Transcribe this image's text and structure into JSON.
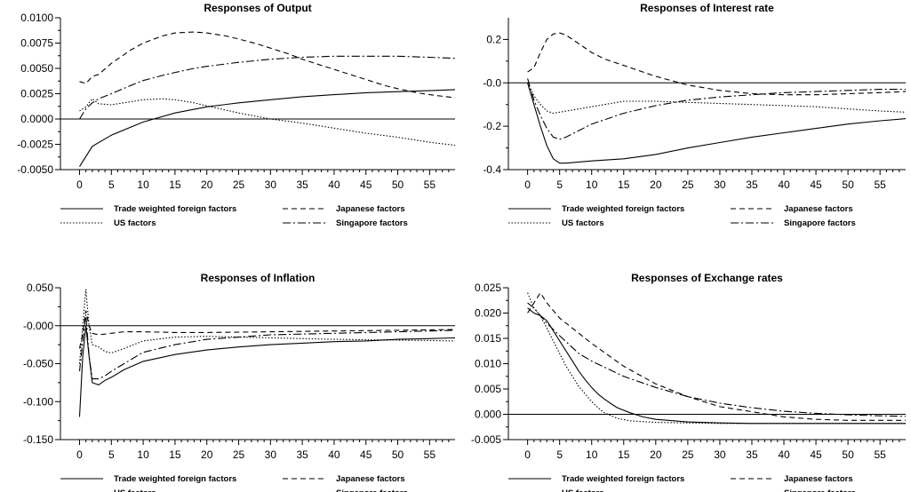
{
  "legend_entries": [
    {
      "name": "Trade weighted foreign factors",
      "dash": "none"
    },
    {
      "name": "Japanese factors",
      "dash": "6,4"
    },
    {
      "name": "US factors",
      "dash": "1.5,2"
    },
    {
      "name": "Singapore factors",
      "dash": "9,3,2,3"
    }
  ],
  "chart_data": [
    {
      "type": "line",
      "title": "Responses of Output",
      "xlim": [
        -3,
        59
      ],
      "ylim": [
        -0.005,
        0.01
      ],
      "xticks": [
        0,
        5,
        10,
        15,
        20,
        25,
        30,
        35,
        40,
        45,
        50,
        55
      ],
      "xtick_labels": [
        "0",
        "5",
        "10",
        "15",
        "20",
        "25",
        "30",
        "35",
        "40",
        "45",
        "50",
        "55"
      ],
      "yticks": [
        -0.005,
        -0.0025,
        0,
        0.0025,
        0.005,
        0.0075,
        0.01
      ],
      "ytick_labels": [
        "-0.0050",
        "-0.0025",
        "0.0000",
        "0.0025",
        "0.0050",
        "0.0075",
        "0.0100"
      ],
      "zero_line": true,
      "series": [
        {
          "name": "Trade weighted foreign factors",
          "x": [
            0,
            2,
            5,
            10,
            15,
            20,
            25,
            30,
            35,
            40,
            45,
            50,
            55,
            59
          ],
          "y": [
            -0.0047,
            -0.0027,
            -0.0016,
            -0.0003,
            0.0006,
            0.0012,
            0.0016,
            0.0019,
            0.0022,
            0.0024,
            0.0026,
            0.0027,
            0.0028,
            0.0029
          ]
        },
        {
          "name": "Japanese factors",
          "x": [
            0,
            1,
            2,
            3,
            5,
            8,
            10,
            13,
            15,
            18,
            20,
            23,
            25,
            28,
            30,
            33,
            35,
            38,
            40,
            43,
            45,
            48,
            50,
            53,
            55,
            59
          ],
          "y": [
            0.0037,
            0.0035,
            0.0042,
            0.0044,
            0.0055,
            0.0068,
            0.0075,
            0.0082,
            0.0085,
            0.0086,
            0.0085,
            0.0082,
            0.0079,
            0.0074,
            0.007,
            0.0064,
            0.0059,
            0.0053,
            0.0049,
            0.0043,
            0.0039,
            0.0033,
            0.003,
            0.0026,
            0.0024,
            0.0021
          ]
        },
        {
          "name": "US factors",
          "x": [
            0,
            1,
            2,
            3,
            5,
            8,
            10,
            13,
            15,
            18,
            20,
            25,
            30,
            35,
            40,
            45,
            50,
            55,
            59
          ],
          "y": [
            0.0008,
            0.0012,
            0.002,
            0.0015,
            0.0014,
            0.0017,
            0.0019,
            0.002,
            0.0019,
            0.0016,
            0.0013,
            0.0006,
            0.0,
            -0.0004,
            -0.0009,
            -0.0014,
            -0.0018,
            -0.0023,
            -0.0026
          ]
        },
        {
          "name": "Singapore factors",
          "x": [
            0,
            1,
            2,
            3,
            5,
            8,
            10,
            13,
            15,
            18,
            20,
            25,
            30,
            35,
            40,
            45,
            50,
            55,
            59
          ],
          "y": [
            0.0,
            0.001,
            0.0016,
            0.002,
            0.0025,
            0.0033,
            0.0038,
            0.0043,
            0.0046,
            0.005,
            0.0052,
            0.0056,
            0.0059,
            0.0061,
            0.0062,
            0.0062,
            0.0062,
            0.0061,
            0.006
          ]
        }
      ]
    },
    {
      "type": "line",
      "title": "Responses of Interest rate",
      "xlim": [
        -3,
        59
      ],
      "ylim": [
        -0.4,
        0.3
      ],
      "xticks": [
        0,
        5,
        10,
        15,
        20,
        25,
        30,
        35,
        40,
        45,
        50,
        55
      ],
      "xtick_labels": [
        "0",
        "5",
        "10",
        "15",
        "20",
        "25",
        "30",
        "35",
        "40",
        "45",
        "50",
        "55"
      ],
      "yticks": [
        -0.4,
        -0.2,
        0,
        0.2
      ],
      "ytick_labels": [
        "-0.4",
        "-0.2",
        "-0.0",
        "0.2"
      ],
      "zero_line": true,
      "series": [
        {
          "name": "Trade weighted foreign factors",
          "x": [
            0,
            1,
            2,
            3,
            4,
            5,
            6,
            8,
            10,
            15,
            20,
            25,
            30,
            35,
            40,
            45,
            50,
            55,
            59
          ],
          "y": [
            0.0,
            -0.1,
            -0.2,
            -0.29,
            -0.35,
            -0.37,
            -0.37,
            -0.365,
            -0.36,
            -0.35,
            -0.33,
            -0.3,
            -0.275,
            -0.25,
            -0.23,
            -0.21,
            -0.19,
            -0.175,
            -0.165
          ]
        },
        {
          "name": "Japanese factors",
          "x": [
            0,
            1,
            2,
            3,
            4,
            5,
            6,
            8,
            10,
            12,
            15,
            20,
            25,
            30,
            35,
            40,
            45,
            50,
            55,
            59
          ],
          "y": [
            0.05,
            0.07,
            0.14,
            0.2,
            0.225,
            0.23,
            0.22,
            0.18,
            0.14,
            0.11,
            0.08,
            0.03,
            -0.01,
            -0.035,
            -0.05,
            -0.055,
            -0.055,
            -0.05,
            -0.045,
            -0.04
          ]
        },
        {
          "name": "US factors",
          "x": [
            0,
            1,
            2,
            3,
            4,
            5,
            8,
            10,
            15,
            20,
            25,
            30,
            35,
            40,
            45,
            50,
            55,
            59
          ],
          "y": [
            0.0,
            -0.06,
            -0.1,
            -0.13,
            -0.14,
            -0.135,
            -0.12,
            -0.11,
            -0.085,
            -0.085,
            -0.09,
            -0.095,
            -0.1,
            -0.105,
            -0.11,
            -0.12,
            -0.13,
            -0.135
          ]
        },
        {
          "name": "Singapore factors",
          "x": [
            0,
            1,
            2,
            3,
            4,
            5,
            6,
            8,
            10,
            15,
            20,
            25,
            30,
            35,
            40,
            45,
            50,
            55,
            59
          ],
          "y": [
            0.02,
            -0.08,
            -0.15,
            -0.21,
            -0.25,
            -0.26,
            -0.25,
            -0.22,
            -0.19,
            -0.14,
            -0.105,
            -0.08,
            -0.065,
            -0.055,
            -0.045,
            -0.04,
            -0.035,
            -0.03,
            -0.03
          ]
        }
      ]
    },
    {
      "type": "line",
      "title": "Responses of Inflation",
      "xlim": [
        -3,
        59
      ],
      "ylim": [
        -0.15,
        0.05
      ],
      "xticks": [
        0,
        5,
        10,
        15,
        20,
        25,
        30,
        35,
        40,
        45,
        50,
        55
      ],
      "xtick_labels": [
        "0",
        "5",
        "10",
        "15",
        "20",
        "25",
        "30",
        "35",
        "40",
        "45",
        "50",
        "55"
      ],
      "yticks": [
        -0.15,
        -0.1,
        -0.05,
        0,
        0.05
      ],
      "ytick_labels": [
        "-0.150",
        "-0.100",
        "-0.050",
        "-0.000",
        "0.050"
      ],
      "zero_line": true,
      "series": [
        {
          "name": "Trade weighted foreign factors",
          "x": [
            0,
            0.5,
            1,
            1.5,
            2,
            3,
            4,
            5,
            7,
            10,
            15,
            20,
            25,
            30,
            35,
            40,
            45,
            50,
            55,
            59
          ],
          "y": [
            -0.12,
            -0.04,
            0.0,
            -0.04,
            -0.075,
            -0.078,
            -0.072,
            -0.068,
            -0.058,
            -0.047,
            -0.038,
            -0.032,
            -0.028,
            -0.025,
            -0.023,
            -0.021,
            -0.02,
            -0.018,
            -0.017,
            -0.016
          ]
        },
        {
          "name": "Japanese factors",
          "x": [
            0,
            0.5,
            1,
            1.5,
            2,
            3,
            5,
            7,
            10,
            15,
            20,
            30,
            40,
            50,
            59
          ],
          "y": [
            -0.03,
            -0.01,
            0.02,
            0.0,
            -0.01,
            -0.012,
            -0.01,
            -0.008,
            -0.008,
            -0.009,
            -0.009,
            -0.008,
            -0.007,
            -0.006,
            -0.005
          ]
        },
        {
          "name": "US factors",
          "x": [
            0,
            0.5,
            1,
            1.5,
            2,
            3,
            4,
            5,
            7,
            10,
            15,
            20,
            30,
            40,
            50,
            59
          ],
          "y": [
            -0.05,
            0.0,
            0.048,
            0.0,
            -0.025,
            -0.028,
            -0.034,
            -0.036,
            -0.03,
            -0.02,
            -0.015,
            -0.014,
            -0.016,
            -0.018,
            -0.019,
            -0.02
          ]
        },
        {
          "name": "Singapore factors",
          "x": [
            0,
            0.5,
            1,
            1.5,
            2,
            3,
            4,
            5,
            7,
            10,
            15,
            20,
            25,
            30,
            40,
            50,
            59
          ],
          "y": [
            -0.06,
            -0.02,
            0.015,
            -0.04,
            -0.07,
            -0.07,
            -0.066,
            -0.06,
            -0.05,
            -0.035,
            -0.025,
            -0.018,
            -0.015,
            -0.012,
            -0.01,
            -0.008,
            -0.006
          ]
        }
      ]
    },
    {
      "type": "line",
      "title": "Responses of Exchange rates",
      "xlim": [
        -3,
        59
      ],
      "ylim": [
        -0.005,
        0.025
      ],
      "xticks": [
        0,
        5,
        10,
        15,
        20,
        25,
        30,
        35,
        40,
        45,
        50,
        55
      ],
      "xtick_labels": [
        "0",
        "5",
        "10",
        "15",
        "20",
        "25",
        "30",
        "35",
        "40",
        "45",
        "50",
        "55"
      ],
      "yticks": [
        -0.005,
        0,
        0.005,
        0.01,
        0.015,
        0.02,
        0.025
      ],
      "ytick_labels": [
        "-0.005",
        "0.000",
        "0.005",
        "0.010",
        "0.015",
        "0.020",
        "0.025"
      ],
      "zero_line": true,
      "series": [
        {
          "name": "Trade weighted foreign factors",
          "x": [
            0,
            1,
            2,
            3,
            4,
            5,
            6,
            7,
            8,
            9,
            10,
            11,
            12,
            13,
            14,
            16,
            18,
            20,
            25,
            30,
            35,
            40,
            45,
            50,
            55,
            59
          ],
          "y": [
            0.021,
            0.02,
            0.0195,
            0.0185,
            0.0165,
            0.0145,
            0.0125,
            0.0105,
            0.0085,
            0.0068,
            0.0053,
            0.004,
            0.003,
            0.0021,
            0.0013,
            0.0003,
            -0.0005,
            -0.001,
            -0.0015,
            -0.0017,
            -0.0018,
            -0.0018,
            -0.0018,
            -0.0018,
            -0.0018,
            -0.0018
          ]
        },
        {
          "name": "Japanese factors",
          "x": [
            0,
            1,
            2,
            3,
            5,
            8,
            10,
            15,
            20,
            25,
            30,
            35,
            40,
            45,
            50,
            55,
            59
          ],
          "y": [
            0.02,
            0.022,
            0.024,
            0.022,
            0.019,
            0.016,
            0.014,
            0.0095,
            0.006,
            0.0035,
            0.0015,
            0.0005,
            -0.0005,
            -0.001,
            -0.0012,
            -0.0012,
            -0.0012
          ]
        },
        {
          "name": "US factors",
          "x": [
            0,
            1,
            2,
            3,
            4,
            5,
            6,
            7,
            8,
            9,
            10,
            11,
            12,
            14,
            16,
            20,
            25,
            30,
            35,
            40,
            45,
            50,
            55,
            59
          ],
          "y": [
            0.024,
            0.021,
            0.0195,
            0.017,
            0.0145,
            0.012,
            0.0095,
            0.0075,
            0.0055,
            0.004,
            0.0025,
            0.0013,
            0.0003,
            -0.0008,
            -0.0013,
            -0.0016,
            -0.0017,
            -0.0018,
            -0.0018,
            -0.0018,
            -0.0018,
            -0.0018,
            -0.0018,
            -0.0018
          ]
        },
        {
          "name": "Singapore factors",
          "x": [
            0,
            1,
            2,
            3,
            5,
            8,
            10,
            15,
            20,
            25,
            30,
            35,
            40,
            45,
            50,
            55,
            59
          ],
          "y": [
            0.022,
            0.021,
            0.0195,
            0.018,
            0.0155,
            0.012,
            0.0105,
            0.0075,
            0.0053,
            0.0035,
            0.0022,
            0.0013,
            0.0006,
            0.0002,
            -0.0001,
            -0.0003,
            -0.0004
          ]
        }
      ]
    }
  ]
}
